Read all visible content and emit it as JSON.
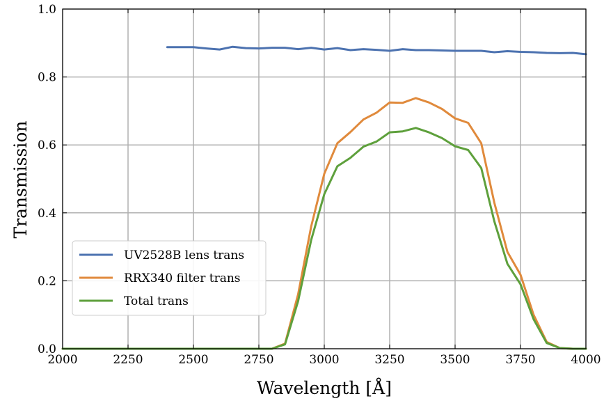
{
  "chart_data": {
    "type": "line",
    "title": "",
    "xlabel": "Wavelength [Å]",
    "ylabel": "Transmission",
    "xlim": [
      2000,
      4000
    ],
    "ylim": [
      0.0,
      1.0
    ],
    "xticks": [
      2000,
      2250,
      2500,
      2750,
      3000,
      3250,
      3500,
      3750,
      4000
    ],
    "xtick_labels": [
      "2000",
      "2250",
      "2500",
      "2750",
      "3000",
      "3250",
      "3500",
      "3750",
      "4000"
    ],
    "yticks": [
      0.0,
      0.2,
      0.4,
      0.6,
      0.8,
      1.0
    ],
    "ytick_labels": [
      "0.0",
      "0.2",
      "0.4",
      "0.6",
      "0.8",
      "1.0"
    ],
    "grid": true,
    "legend_position": "lower-left",
    "series": [
      {
        "name": "UV2528B lens trans",
        "color": "#4c72b0",
        "x": [
          2400,
          2450,
          2500,
          2550,
          2600,
          2650,
          2700,
          2750,
          2800,
          2850,
          2900,
          2950,
          3000,
          3050,
          3100,
          3150,
          3200,
          3250,
          3300,
          3350,
          3400,
          3450,
          3500,
          3550,
          3600,
          3650,
          3700,
          3750,
          3800,
          3850,
          3900,
          3950,
          4000
        ],
        "y": [
          0.888,
          0.888,
          0.888,
          0.884,
          0.881,
          0.889,
          0.885,
          0.884,
          0.886,
          0.886,
          0.882,
          0.886,
          0.881,
          0.885,
          0.879,
          0.882,
          0.88,
          0.877,
          0.882,
          0.879,
          0.879,
          0.878,
          0.877,
          0.877,
          0.877,
          0.873,
          0.876,
          0.874,
          0.873,
          0.871,
          0.87,
          0.871,
          0.867
        ]
      },
      {
        "name": "RRX340 filter trans",
        "color": "#e08a3c",
        "x": [
          2000,
          2800,
          2850,
          2900,
          2950,
          3000,
          3050,
          3100,
          3150,
          3200,
          3250,
          3300,
          3350,
          3400,
          3450,
          3500,
          3550,
          3600,
          3650,
          3700,
          3750,
          3800,
          3850,
          3900,
          3950,
          4000
        ],
        "y": [
          0.0,
          0.0,
          0.015,
          0.16,
          0.36,
          0.515,
          0.605,
          0.638,
          0.675,
          0.695,
          0.725,
          0.724,
          0.738,
          0.725,
          0.706,
          0.678,
          0.665,
          0.605,
          0.43,
          0.285,
          0.218,
          0.1,
          0.02,
          0.002,
          0.0,
          0.0
        ]
      },
      {
        "name": "Total trans",
        "color": "#5ea03c",
        "x": [
          2000,
          2800,
          2850,
          2900,
          2950,
          3000,
          3050,
          3100,
          3150,
          3200,
          3250,
          3300,
          3350,
          3400,
          3450,
          3500,
          3550,
          3600,
          3650,
          3700,
          3750,
          3800,
          3850,
          3900,
          3950,
          4000
        ],
        "y": [
          0.0,
          0.0,
          0.013,
          0.14,
          0.32,
          0.455,
          0.537,
          0.562,
          0.595,
          0.61,
          0.637,
          0.64,
          0.65,
          0.637,
          0.62,
          0.596,
          0.585,
          0.532,
          0.375,
          0.25,
          0.19,
          0.087,
          0.017,
          0.002,
          0.0,
          0.0
        ]
      }
    ]
  }
}
